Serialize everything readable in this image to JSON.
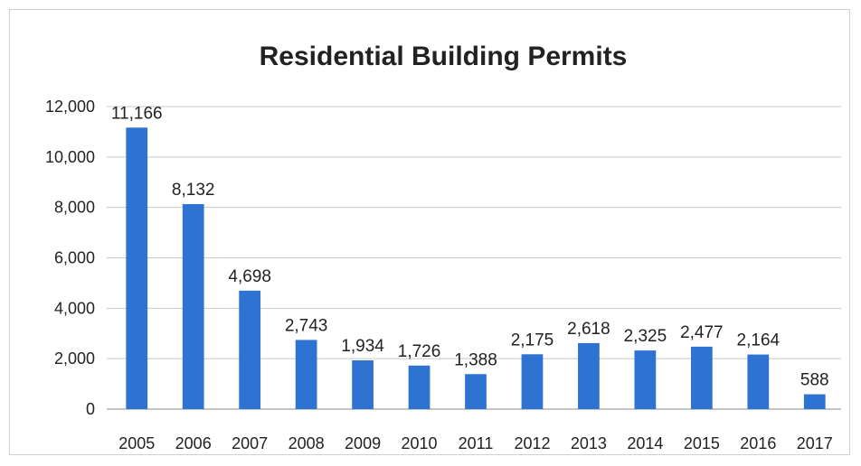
{
  "chart_data": {
    "type": "bar",
    "title": "Residential Building Permits",
    "categories": [
      "2005",
      "2006",
      "2007",
      "2008",
      "2009",
      "2010",
      "2011",
      "2012",
      "2013",
      "2014",
      "2015",
      "2016",
      "2017"
    ],
    "values": [
      11166,
      8132,
      4698,
      2743,
      1934,
      1726,
      1388,
      2175,
      2618,
      2325,
      2477,
      2164,
      588
    ],
    "data_labels": [
      "11,166",
      "8,132",
      "4,698",
      "2,743",
      "1,934",
      "1,726",
      "1,388",
      "2,175",
      "2,618",
      "2,325",
      "2,477",
      "2,164",
      "588"
    ],
    "y_ticks": [
      0,
      2000,
      4000,
      6000,
      8000,
      10000,
      12000
    ],
    "y_tick_labels": [
      "0",
      "2,000",
      "4,000",
      "6,000",
      "8,000",
      "10,000",
      "12,000"
    ],
    "ylim": [
      0,
      12000
    ],
    "grid": true,
    "legend": "none",
    "bar_color": "#2e72d2"
  }
}
